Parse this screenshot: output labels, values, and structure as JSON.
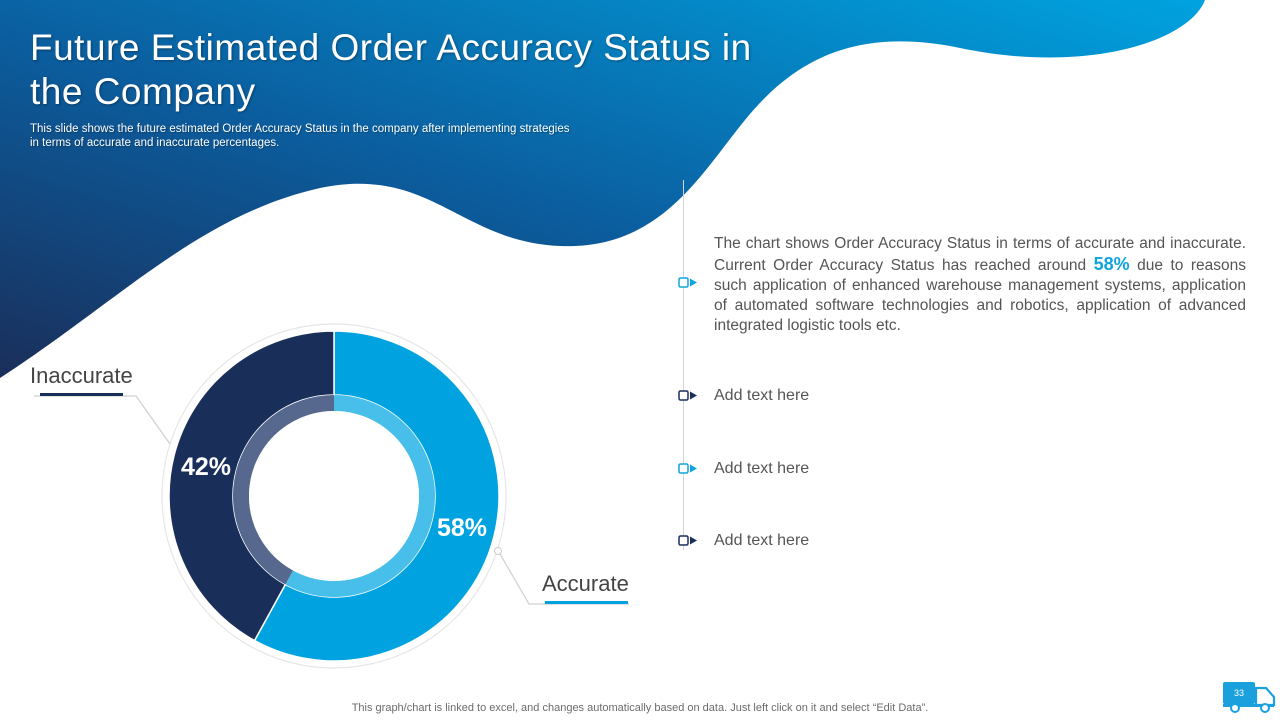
{
  "header": {
    "title": "Future Estimated Order Accuracy Status in the Company",
    "subtitle": "This slide shows the future estimated Order Accuracy Status in the company after implementing strategies in terms of accurate and inaccurate percentages."
  },
  "chart_data": {
    "type": "pie",
    "style": "donut",
    "series": [
      {
        "name": "Accurate",
        "value": 58,
        "label": "58%",
        "color": "#00a3e0"
      },
      {
        "name": "Inaccurate",
        "value": 42,
        "label": "42%",
        "color": "#1a2e5a"
      }
    ],
    "inner_ring_colors": [
      "#47bfea",
      "#56688e"
    ]
  },
  "description": {
    "text_before": "The chart shows Order Accuracy Status in terms of accurate and inaccurate. Current Order Accuracy Status has reached around ",
    "highlight": "58%",
    "text_after": " due to reasons such application of enhanced warehouse management systems, application of automated software technologies and robotics, application of advanced integrated logistic tools etc."
  },
  "items": [
    {
      "label": "Add text here",
      "bullet_color": "#0ea5dc"
    },
    {
      "label": "Add text here",
      "bullet_color": "#1a2e5a"
    },
    {
      "label": "Add text here",
      "bullet_color": "#0ea5dc"
    },
    {
      "label": "Add text here",
      "bullet_color": "#1a2e5a"
    }
  ],
  "footer": {
    "note": "This graph/chart is linked to excel, and changes automatically based on data. Just left click on it and select “Edit Data”."
  },
  "page": {
    "number": "33",
    "icon": "truck-icon"
  },
  "colors": {
    "dark_navy": "#1a2e5a",
    "brand_blue": "#00a3e0",
    "light_blue": "#0ea5dc"
  }
}
